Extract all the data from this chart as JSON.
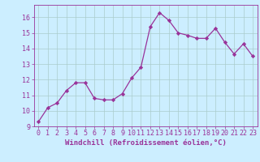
{
  "x": [
    0,
    1,
    2,
    3,
    4,
    5,
    6,
    7,
    8,
    9,
    10,
    11,
    12,
    13,
    14,
    15,
    16,
    17,
    18,
    19,
    20,
    21,
    22,
    23
  ],
  "y": [
    9.3,
    10.2,
    10.5,
    11.3,
    11.8,
    11.8,
    10.8,
    10.7,
    10.7,
    11.1,
    12.1,
    12.8,
    15.4,
    16.3,
    15.8,
    15.0,
    14.85,
    14.65,
    14.65,
    15.3,
    14.4,
    13.65,
    14.3,
    13.5
  ],
  "line_color": "#993399",
  "marker": "D",
  "marker_size": 2.2,
  "linewidth": 0.9,
  "background_color": "#cceeff",
  "grid_color": "#aacccc",
  "xlabel": "Windchill (Refroidissement éolien,°C)",
  "xlabel_fontsize": 6.5,
  "tick_color": "#993399",
  "tick_fontsize": 6.0,
  "ylim": [
    9,
    16.8
  ],
  "yticks": [
    9,
    10,
    11,
    12,
    13,
    14,
    15,
    16
  ],
  "xlim": [
    -0.5,
    23.5
  ],
  "xticks": [
    0,
    1,
    2,
    3,
    4,
    5,
    6,
    7,
    8,
    9,
    10,
    11,
    12,
    13,
    14,
    15,
    16,
    17,
    18,
    19,
    20,
    21,
    22,
    23
  ]
}
